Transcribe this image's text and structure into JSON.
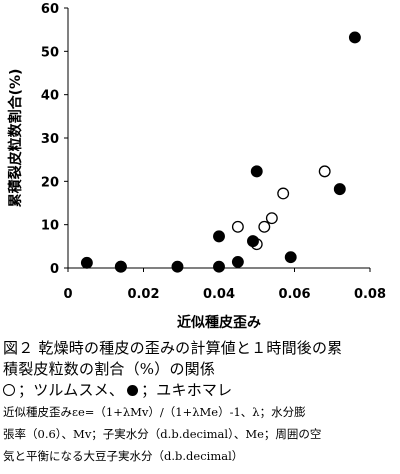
{
  "chart_data": {
    "type": "scatter",
    "title": "",
    "xlabel": "近似種皮歪み",
    "ylabel": "累積裂皮粒数割合(%)",
    "xlim": [
      0,
      0.08
    ],
    "ylim": [
      0,
      60
    ],
    "x_ticks": [
      "0",
      "0.02",
      "0.04",
      "0.06",
      "0.08"
    ],
    "y_ticks": [
      "0",
      "10",
      "20",
      "30",
      "40",
      "50",
      "60"
    ],
    "grid": false,
    "series": [
      {
        "name": "ツルムスメ",
        "marker": "open-circle",
        "points": [
          {
            "x": 0.014,
            "y": 0.3
          },
          {
            "x": 0.045,
            "y": 9.5
          },
          {
            "x": 0.05,
            "y": 5.5
          },
          {
            "x": 0.052,
            "y": 9.5
          },
          {
            "x": 0.054,
            "y": 11.5
          },
          {
            "x": 0.057,
            "y": 17.2
          },
          {
            "x": 0.068,
            "y": 22.3
          }
        ]
      },
      {
        "name": "ユキホマレ",
        "marker": "filled-circle",
        "points": [
          {
            "x": 0.005,
            "y": 1.2
          },
          {
            "x": 0.014,
            "y": 0.3
          },
          {
            "x": 0.029,
            "y": 0.3
          },
          {
            "x": 0.04,
            "y": 7.3
          },
          {
            "x": 0.04,
            "y": 0.3
          },
          {
            "x": 0.045,
            "y": 1.4
          },
          {
            "x": 0.049,
            "y": 6.2
          },
          {
            "x": 0.05,
            "y": 22.3
          },
          {
            "x": 0.059,
            "y": 2.5
          },
          {
            "x": 0.072,
            "y": 18.2
          },
          {
            "x": 0.076,
            "y": 53.2
          }
        ]
      }
    ]
  },
  "caption": {
    "line1": "図２ 乾燥時の種皮の歪みの計算値と１時間後の累",
    "line2": "積裂皮粒数の割合（%）の関係",
    "legend_open_label": "；ツルムスメ、",
    "legend_filled_label": "；ユキホマレ",
    "note1": "近似種皮歪みεe=（1+λMv）/（1+λMe）-1、λ；水分膨",
    "note2": "張率（0.6）、Mv；子実水分（d.b.decimal）、Me；周囲の空",
    "note3": "気と平衡になる大豆子実水分（d.b.decimal）"
  }
}
